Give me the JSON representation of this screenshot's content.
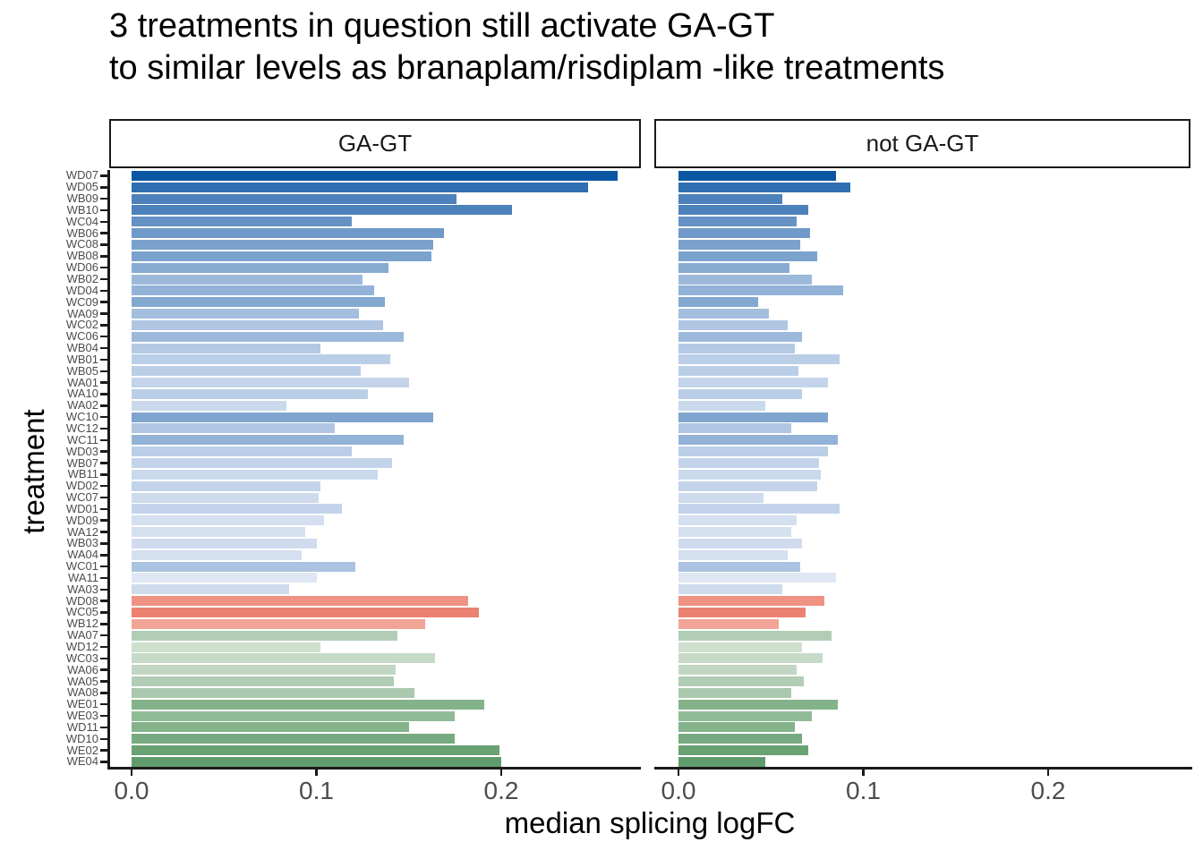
{
  "title": {
    "line1": "3 treatments in question still activate GA-GT",
    "line2": "to similar levels as branaplam/risdiplam -like treatments"
  },
  "chart_data": {
    "type": "bar",
    "orientation": "horizontal",
    "title": "3 treatments in question still activate GA-GT to similar levels as branaplam/risdiplam -like treatments",
    "xlabel": "median splicing logFC",
    "ylabel": "treatment",
    "facet_labels": [
      "GA-GT",
      "not GA-GT"
    ],
    "x_tick_labels": [
      "0.0",
      "0.1",
      "0.2"
    ],
    "x_tick_values": [
      0.0,
      0.1,
      0.2
    ],
    "xlim": [
      0,
      0.285
    ],
    "grid": false,
    "legend": "none",
    "axis_text_color": "#4d4d4d",
    "axis_line_color": "#1a1a1a",
    "categories": [
      "WD07",
      "WD05",
      "WB09",
      "WB10",
      "WC04",
      "WB06",
      "WC08",
      "WB08",
      "WD06",
      "WB02",
      "WD04",
      "WC09",
      "WA09",
      "WC02",
      "WC06",
      "WB04",
      "WB01",
      "WB05",
      "WA01",
      "WA10",
      "WA02",
      "WC10",
      "WC12",
      "WC11",
      "WD03",
      "WB07",
      "WB11",
      "WD02",
      "WC07",
      "WD01",
      "WD09",
      "WA12",
      "WB03",
      "WA04",
      "WC01",
      "WA11",
      "WA03",
      "WD08",
      "WC05",
      "WB12",
      "WA07",
      "WD12",
      "WC03",
      "WA06",
      "WA05",
      "WA08",
      "WE01",
      "WE03",
      "WD11",
      "WD10",
      "WE02",
      "WE04"
    ],
    "series": [
      {
        "name": "GA-GT",
        "values": [
          0.263,
          0.247,
          0.176,
          0.206,
          0.119,
          0.169,
          0.163,
          0.162,
          0.139,
          0.125,
          0.131,
          0.137,
          0.123,
          0.136,
          0.147,
          0.102,
          0.14,
          0.124,
          0.15,
          0.128,
          0.084,
          0.163,
          0.11,
          0.147,
          0.119,
          0.141,
          0.133,
          0.102,
          0.101,
          0.114,
          0.104,
          0.094,
          0.1,
          0.092,
          0.121,
          0.1,
          0.085,
          0.182,
          0.188,
          0.159,
          0.144,
          0.102,
          0.164,
          0.143,
          0.142,
          0.153,
          0.191,
          0.175,
          0.15,
          0.175,
          0.199,
          0.2
        ]
      },
      {
        "name": "not GA-GT",
        "values": [
          0.085,
          0.093,
          0.056,
          0.07,
          0.064,
          0.071,
          0.066,
          0.075,
          0.06,
          0.072,
          0.089,
          0.043,
          0.049,
          0.059,
          0.067,
          0.063,
          0.087,
          0.065,
          0.081,
          0.067,
          0.047,
          0.081,
          0.061,
          0.086,
          0.081,
          0.076,
          0.077,
          0.075,
          0.046,
          0.087,
          0.064,
          0.061,
          0.067,
          0.059,
          0.066,
          0.085,
          0.056,
          0.079,
          0.069,
          0.054,
          0.083,
          0.067,
          0.078,
          0.064,
          0.068,
          0.061,
          0.086,
          0.072,
          0.063,
          0.067,
          0.07,
          0.047
        ]
      }
    ],
    "bar_colors": [
      "#0b56a3",
      "#2f6fb1",
      "#4d81bc",
      "#4d81bc",
      "#6591c4",
      "#6f99c9",
      "#7aa2cd",
      "#7aa2cd",
      "#88abd2",
      "#9cb9db",
      "#92b3d7",
      "#83a8d0",
      "#a4bfde",
      "#afc5e2",
      "#9cb9db",
      "#b4c9e4",
      "#bacee7",
      "#bacee7",
      "#c3d4ea",
      "#bacee7",
      "#cad9ec",
      "#7fa5cf",
      "#b0c6e2",
      "#92b3d7",
      "#bacee7",
      "#c3d4ea",
      "#cad9ec",
      "#c3d4ea",
      "#cedbed",
      "#c3d4ea",
      "#d4dff0",
      "#d4dff0",
      "#d0dcee",
      "#d4dff0",
      "#abc3e0",
      "#dee7f3",
      "#cedbed",
      "#ef9183",
      "#eb8171",
      "#f2a496",
      "#b2cdb5",
      "#cfe0cf",
      "#c6dac7",
      "#c2d7c3",
      "#b2cdb5",
      "#a9c8ad",
      "#84b38b",
      "#91bb97",
      "#84b38b",
      "#77aa80",
      "#69a173",
      "#609b6d"
    ]
  }
}
